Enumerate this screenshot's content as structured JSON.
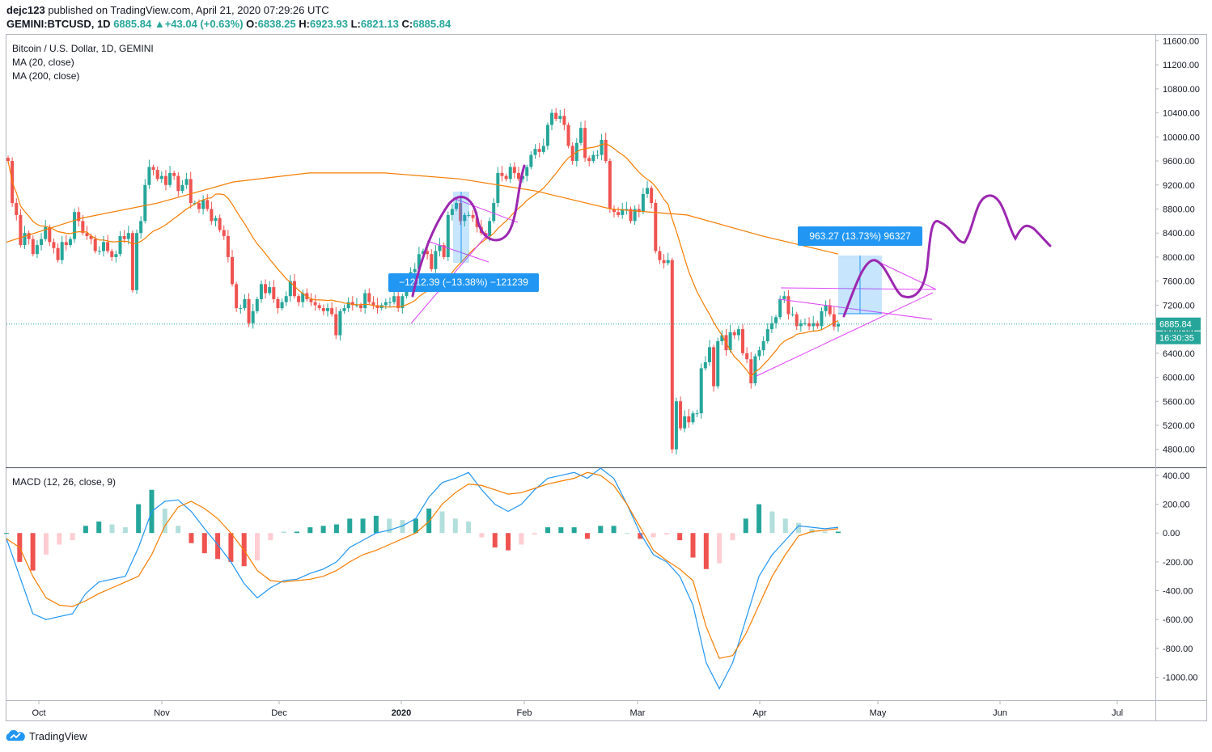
{
  "header": {
    "publisher": "dejc123",
    "published_text": "published on TradingView.com, April 21, 2020 07:29:26 UTC",
    "symbol": "GEMINI:BTCUSD, 1D",
    "last": "6885.84",
    "change": "+43.04 (+0.63%)",
    "o_label": "O:",
    "o": "6838.25",
    "h_label": "H:",
    "h": "6923.93",
    "l_label": "L:",
    "l": "6821.13",
    "c_label": "C:",
    "c": "6885.84"
  },
  "legends": {
    "title": "Bitcoin / U.S. Dollar, 1D, GEMINI",
    "ma20": "MA (20, close)",
    "ma200": "MA (200, close)",
    "macd": "MACD (12, 26, close, 9)"
  },
  "footer": {
    "brand": "TradingView"
  },
  "colors": {
    "up": "#26a69a",
    "down": "#ef5350",
    "ma20": "#f57c00",
    "ma200": "#f57c00",
    "macd_line": "#2196f3",
    "signal_line": "#f57c00",
    "drawing": "#9c27b0",
    "trendline": "#e040fb",
    "measure": "#2196f3",
    "price_line": "#26a69a"
  },
  "chart_data": [
    {
      "type": "candlestick",
      "title": "Bitcoin / U.S. Dollar, 1D, GEMINI",
      "y_ticks": [
        "11600.00",
        "11200.00",
        "10800.00",
        "10400.00",
        "10000.00",
        "9600.00",
        "9200.00",
        "8800.00",
        "8400.00",
        "8000.00",
        "7600.00",
        "7200.00",
        "6800.00",
        "6400.00",
        "6000.00",
        "5600.00",
        "5200.00",
        "4800.00"
      ],
      "ylim": [
        4500,
        11700
      ],
      "x_labels": [
        "Oct",
        "Nov",
        "Dec",
        "2020",
        "Feb",
        "Mar",
        "Apr",
        "May",
        "Jun",
        "Jul"
      ],
      "price_label": "6885.84",
      "countdown_label": "16:30:35",
      "closes": [
        9600,
        8900,
        8700,
        8200,
        8400,
        8300,
        8050,
        8200,
        8300,
        8500,
        8250,
        8150,
        7950,
        8250,
        8200,
        8300,
        8750,
        8600,
        8400,
        8350,
        8300,
        8100,
        8100,
        8250,
        8100,
        8000,
        8050,
        8350,
        8300,
        8400,
        7450,
        8400,
        8600,
        9200,
        9500,
        9450,
        9300,
        9350,
        9200,
        9400,
        9350,
        9100,
        9200,
        9300,
        8900,
        8900,
        8800,
        8950,
        8800,
        8600,
        8650,
        8450,
        8350,
        8000,
        7550,
        7150,
        7150,
        7300,
        6900,
        7100,
        7300,
        7550,
        7400,
        7500,
        7300,
        7150,
        7250,
        7350,
        7600,
        7350,
        7250,
        7400,
        7300,
        7250,
        7200,
        7150,
        7100,
        7150,
        7050,
        6700,
        7100,
        7150,
        7250,
        7200,
        7200,
        7150,
        7400,
        7250,
        7200,
        7150,
        7200,
        7250,
        7250,
        7350,
        7150,
        7350,
        7650,
        7750,
        7800,
        8050,
        8100,
        8050,
        7800,
        8100,
        8200,
        8000,
        8700,
        8800,
        8900,
        8600,
        8700,
        8700,
        8650,
        8500,
        8400,
        8350,
        8600,
        8900,
        9400,
        9350,
        9300,
        9500,
        9400,
        9300,
        9350,
        9500,
        9700,
        9800,
        9750,
        9850,
        10200,
        10400,
        10300,
        10350,
        10200,
        9850,
        9600,
        9900,
        10150,
        9650,
        9600,
        9700,
        9700,
        9950,
        9600,
        8800,
        8750,
        8700,
        8800,
        8800,
        8600,
        8800,
        8750,
        9050,
        9150,
        8900,
        8100,
        7950,
        7900,
        7950,
        4800,
        5600,
        5150,
        5350,
        5250,
        5400,
        5400,
        6150,
        6250,
        6500,
        5850,
        6600,
        6700,
        6450,
        6750,
        6700,
        6800,
        6400,
        6300,
        5900,
        6350,
        6450,
        6600,
        6800,
        6900,
        7000,
        7300,
        7350,
        7050,
        7050,
        6850,
        6900,
        6900,
        6850,
        6900,
        6850,
        7100,
        7200,
        7050,
        6845,
        6885
      ],
      "ma200_anchor_values": [
        8250,
        8650,
        8900,
        9250,
        9400,
        9400,
        9300,
        9100,
        8800,
        8700,
        8350,
        8050
      ],
      "annotations": [
        {
          "type": "measure",
          "text": "−1212.39 (−13.38%) −121239"
        },
        {
          "type": "measure",
          "text": "963.27 (13.73%) 96327"
        }
      ]
    },
    {
      "type": "bar+line",
      "title": "MACD (12, 26, close, 9)",
      "y_ticks": [
        "400.00",
        "200.00",
        "0.00",
        "-200.00",
        "-400.00",
        "-600.00",
        "-800.00",
        "-1000.00"
      ],
      "ylim": [
        -1160,
        450
      ],
      "series": [
        {
          "name": "MACD",
          "values": [
            -40,
            -300,
            -560,
            -600,
            -580,
            -560,
            -420,
            -340,
            -320,
            -300,
            -100,
            150,
            220,
            230,
            150,
            30,
            -80,
            -200,
            -350,
            -450,
            -380,
            -330,
            -320,
            -280,
            -250,
            -200,
            -100,
            -50,
            0,
            20,
            50,
            100,
            250,
            350,
            380,
            420,
            300,
            200,
            150,
            200,
            300,
            380,
            400,
            420,
            380,
            450,
            380,
            200,
            0,
            -150,
            -200,
            -300,
            -500,
            -900,
            -1080,
            -900,
            -600,
            -300,
            -150,
            -50,
            50,
            40,
            30,
            40
          ]
        },
        {
          "name": "Signal",
          "values": [
            -40,
            -100,
            -300,
            -450,
            -500,
            -510,
            -470,
            -420,
            -380,
            -340,
            -300,
            -150,
            50,
            180,
            220,
            170,
            100,
            0,
            -120,
            -260,
            -330,
            -340,
            -330,
            -320,
            -300,
            -260,
            -200,
            -150,
            -120,
            -80,
            -40,
            0,
            80,
            200,
            280,
            340,
            330,
            300,
            270,
            280,
            310,
            340,
            360,
            380,
            420,
            400,
            330,
            200,
            40,
            -120,
            -190,
            -250,
            -330,
            -650,
            -870,
            -850,
            -700,
            -500,
            -300,
            -150,
            -20,
            10,
            20,
            30
          ]
        }
      ]
    }
  ]
}
